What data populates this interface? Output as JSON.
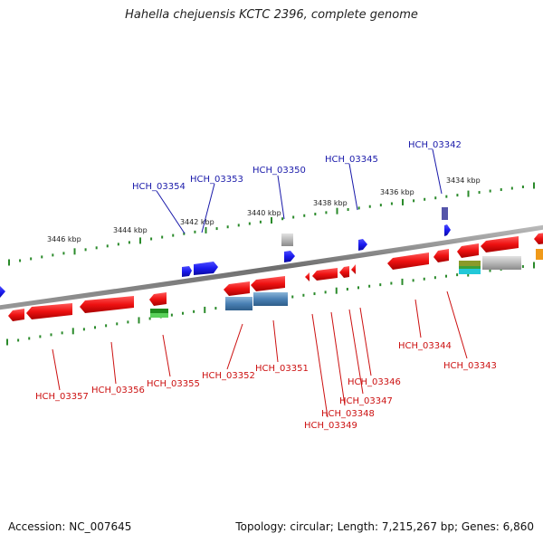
{
  "title": "Hahella chejuensis KCTC 2396, complete genome",
  "footer": {
    "accession": "Accession: NC_007645",
    "summary": "Topology: circular; Length: 7,215,267 bp; Genes: 6,860"
  },
  "colors": {
    "forward_gene": "#1a1aee",
    "reverse_gene": "#ee1111",
    "forward_label": "#1a1aaa",
    "reverse_label": "#cc1111",
    "tick": "#2a8a2a",
    "backbone": "#7a7a7a"
  },
  "ticks": [
    "3446 kbp",
    "3444 kbp",
    "3442 kbp",
    "3440 kbp",
    "3438 kbp",
    "3436 kbp",
    "3434 kbp"
  ],
  "forward_genes": [
    "HCH_03354",
    "HCH_03353",
    "HCH_03350",
    "HCH_03345",
    "HCH_03342"
  ],
  "reverse_genes": [
    "HCH_03357",
    "HCH_03356",
    "HCH_03355",
    "HCH_03352",
    "HCH_03351",
    "HCH_03349",
    "HCH_03348",
    "HCH_03347",
    "HCH_03346",
    "HCH_03344",
    "HCH_03343"
  ]
}
